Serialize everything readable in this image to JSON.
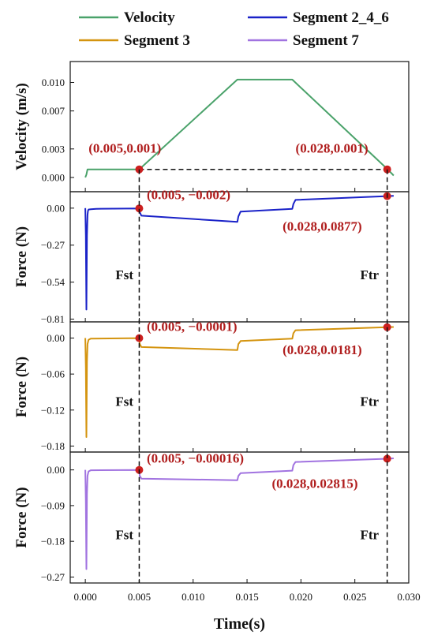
{
  "colors": {
    "velocity": "#4aa26a",
    "seg246": "#1a22c8",
    "seg3": "#d4940f",
    "seg7": "#a173e0",
    "marker": "#cc1f1f",
    "annotation": "#b01e1e"
  },
  "legend": [
    {
      "label": "Velocity",
      "color": "#4aa26a"
    },
    {
      "label": "Segment 2_4_6",
      "color": "#1a22c8"
    },
    {
      "label": "Segment 3",
      "color": "#d4940f"
    },
    {
      "label": "Segment 7",
      "color": "#a173e0"
    }
  ],
  "xaxis": {
    "label": "Time(s)",
    "range": [
      -0.0014,
      0.03
    ],
    "ticks": [
      0.0,
      0.005,
      0.01,
      0.015,
      0.02,
      0.025,
      0.03
    ],
    "tick_labels": [
      "0.000",
      "0.005",
      "0.010",
      "0.015",
      "0.020",
      "0.025",
      "0.030"
    ]
  },
  "chart_data": [
    {
      "type": "line",
      "panel": "velocity",
      "ylabel": "Velocity (m/s)",
      "ylim": [
        -0.0015,
        0.0122
      ],
      "yticks": [
        0.0,
        0.003,
        0.007,
        0.01
      ],
      "ytick_labels": [
        "0.000",
        "0.003",
        "0.007",
        "0.010"
      ],
      "series": [
        {
          "name": "Velocity",
          "color": "#4aa26a",
          "x": [
            0,
            0.0001,
            0.0002,
            0.005,
            0.0141,
            0.0192,
            0.028,
            0.0286
          ],
          "y": [
            0,
            0.0003,
            0.00085,
            0.00085,
            0.0103,
            0.0103,
            0.0009,
            0.0002
          ]
        }
      ],
      "markers": [
        {
          "x": 0.005,
          "y": 0.00085
        },
        {
          "x": 0.028,
          "y": 0.00085
        }
      ],
      "dashed_hline": {
        "x": [
          0.005,
          0.028
        ],
        "y": 0.00085
      },
      "annotations": [
        {
          "text": "(0.005,0.001)",
          "x": 0.0003,
          "y": 0.0026
        },
        {
          "text": "(0.028,0.001)",
          "x": 0.0195,
          "y": 0.0026
        }
      ],
      "side_labels": []
    },
    {
      "type": "line",
      "panel": "seg246",
      "ylabel": "Force (N)",
      "ylim": [
        -0.83,
        0.12
      ],
      "yticks": [
        0.0,
        -0.27,
        -0.54,
        -0.81
      ],
      "ytick_labels": [
        "0.00",
        "−0.27",
        "−0.54",
        "−0.81"
      ],
      "series": [
        {
          "name": "Segment 2_4_6",
          "color": "#1a22c8",
          "x": [
            0,
            5e-05,
            0.0001,
            0.00015,
            0.0002,
            0.00025,
            0.0003,
            0.0005,
            0.001,
            0.005,
            0.00505,
            0.0052,
            0.0141,
            0.0142,
            0.0144,
            0.0192,
            0.0193,
            0.0195,
            0.028,
            0.0286
          ],
          "y": [
            0,
            -0.2,
            -0.74,
            -0.2,
            -0.05,
            -0.02,
            -0.01,
            -0.008,
            -0.005,
            -0.002,
            -0.03,
            -0.055,
            -0.1,
            -0.06,
            -0.025,
            -0.005,
            0.03,
            0.06,
            0.0877,
            0.09
          ]
        }
      ],
      "markers": [
        {
          "x": 0.005,
          "y": -0.002
        },
        {
          "x": 0.028,
          "y": 0.0877
        }
      ],
      "annotations": [
        {
          "text": "(0.005, −0.002)",
          "x": 0.0057,
          "y": 0.065
        },
        {
          "text": "(0.028,0.0877)",
          "x": 0.0183,
          "y": -0.165
        }
      ],
      "side_labels": [
        {
          "text": "Fst",
          "x": 0.0028,
          "y": -0.52
        },
        {
          "text": "Ftr",
          "x": 0.0255,
          "y": -0.52
        }
      ]
    },
    {
      "type": "line",
      "panel": "seg3",
      "ylabel": "Force (N)",
      "ylim": [
        -0.19,
        0.027
      ],
      "yticks": [
        0.0,
        -0.06,
        -0.12,
        -0.18
      ],
      "ytick_labels": [
        "0.00",
        "−0.06",
        "−0.12",
        "−0.18"
      ],
      "series": [
        {
          "name": "Segment 3",
          "color": "#d4940f",
          "x": [
            0,
            5e-05,
            0.0001,
            0.00015,
            0.0002,
            0.0003,
            0.0005,
            0.005,
            0.00505,
            0.0052,
            0.0141,
            0.0142,
            0.0144,
            0.0192,
            0.0193,
            0.0195,
            0.028,
            0.0286
          ],
          "y": [
            0,
            -0.05,
            -0.165,
            -0.04,
            -0.01,
            -0.003,
            -0.001,
            -0.0001,
            -0.01,
            -0.015,
            -0.02,
            -0.01,
            -0.005,
            -0.001,
            0.008,
            0.013,
            0.0181,
            0.0185
          ]
        }
      ],
      "markers": [
        {
          "x": 0.005,
          "y": -0.0001
        },
        {
          "x": 0.028,
          "y": 0.0181
        }
      ],
      "annotations": [
        {
          "text": "(0.005, −0.0001)",
          "x": 0.0057,
          "y": 0.012
        },
        {
          "text": "(0.028,0.0181)",
          "x": 0.0183,
          "y": -0.027
        }
      ],
      "side_labels": [
        {
          "text": "Fst",
          "x": 0.0028,
          "y": -0.113
        },
        {
          "text": "Ftr",
          "x": 0.0255,
          "y": -0.113
        }
      ]
    },
    {
      "type": "line",
      "panel": "seg7",
      "ylabel": "Force (N)",
      "ylim": [
        -0.285,
        0.045
      ],
      "yticks": [
        0.0,
        -0.09,
        -0.18,
        -0.27
      ],
      "ytick_labels": [
        "0.00",
        "−0.09",
        "−0.18",
        "−0.27"
      ],
      "series": [
        {
          "name": "Segment 7",
          "color": "#a173e0",
          "x": [
            0,
            5e-05,
            0.0001,
            0.00015,
            0.0002,
            0.0003,
            0.0005,
            0.005,
            0.00505,
            0.0052,
            0.0141,
            0.0142,
            0.0144,
            0.0192,
            0.0193,
            0.0195,
            0.028,
            0.0286
          ],
          "y": [
            0,
            -0.08,
            -0.25,
            -0.06,
            -0.015,
            -0.004,
            -0.001,
            -0.00016,
            -0.015,
            -0.022,
            -0.026,
            -0.015,
            -0.008,
            -0.002,
            0.012,
            0.02,
            0.02815,
            0.029
          ]
        }
      ],
      "markers": [
        {
          "x": 0.005,
          "y": -0.00016
        },
        {
          "x": 0.028,
          "y": 0.02815
        }
      ],
      "annotations": [
        {
          "text": "(0.005, −0.00016)",
          "x": 0.0057,
          "y": 0.018
        },
        {
          "text": "(0.028,0.02815)",
          "x": 0.0173,
          "y": -0.045
        }
      ],
      "side_labels": [
        {
          "text": "Fst",
          "x": 0.0028,
          "y": -0.175
        },
        {
          "text": "Ftr",
          "x": 0.0255,
          "y": -0.175
        }
      ]
    }
  ],
  "vertical_dashed_x": [
    0.005,
    0.028
  ]
}
